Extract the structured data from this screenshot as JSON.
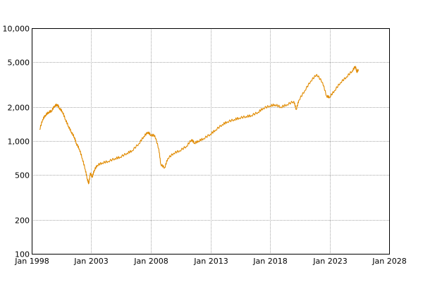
{
  "chart_data": {
    "type": "line",
    "title": "",
    "xlabel": "",
    "ylabel": "",
    "y_scale": "log",
    "xlim": [
      "1998-01-01",
      "2028-01-01"
    ],
    "ylim": [
      100,
      10000
    ],
    "grid": true,
    "legend": "none",
    "x_tick_labels": [
      "Jan 1998",
      "Jan 2003",
      "Jan 2008",
      "Jan 2013",
      "Jan 2018",
      "Jan 2023",
      "Jan 2028"
    ],
    "x_ticks": [
      "1998-01-01",
      "2003-01-01",
      "2008-01-01",
      "2013-01-01",
      "2018-01-01",
      "2023-01-01",
      "2028-01-01"
    ],
    "y_ticks": [
      100,
      200,
      500,
      1000,
      2000,
      5000,
      10000
    ],
    "y_tick_labels": [
      "100",
      "200",
      "500",
      "1,000",
      "2,000",
      "5,000",
      "10,000"
    ],
    "series": [
      {
        "color": "#e08a00",
        "points": [
          [
            "1998-09-01",
            1260
          ],
          [
            "1998-12-01",
            1550
          ],
          [
            "1999-03-01",
            1700
          ],
          [
            "1999-06-01",
            1800
          ],
          [
            "1999-09-01",
            1850
          ],
          [
            "1999-12-01",
            2050
          ],
          [
            "2000-03-01",
            2100
          ],
          [
            "2000-05-01",
            1950
          ],
          [
            "2000-08-01",
            1820
          ],
          [
            "2000-11-01",
            1550
          ],
          [
            "2001-02-01",
            1350
          ],
          [
            "2001-05-01",
            1200
          ],
          [
            "2001-08-01",
            1080
          ],
          [
            "2001-10-01",
            950
          ],
          [
            "2002-01-01",
            850
          ],
          [
            "2002-04-01",
            700
          ],
          [
            "2002-07-01",
            560
          ],
          [
            "2002-09-01",
            460
          ],
          [
            "2002-10-15",
            420
          ],
          [
            "2002-12-01",
            520
          ],
          [
            "2003-02-01",
            480
          ],
          [
            "2003-04-01",
            550
          ],
          [
            "2003-07-01",
            610
          ],
          [
            "2003-12-01",
            640
          ],
          [
            "2004-06-01",
            660
          ],
          [
            "2005-01-01",
            700
          ],
          [
            "2005-06-01",
            720
          ],
          [
            "2006-01-01",
            780
          ],
          [
            "2006-06-01",
            820
          ],
          [
            "2007-01-01",
            950
          ],
          [
            "2007-06-01",
            1100
          ],
          [
            "2007-10-01",
            1200
          ],
          [
            "2008-01-01",
            1130
          ],
          [
            "2008-05-01",
            1120
          ],
          [
            "2008-09-01",
            850
          ],
          [
            "2008-11-01",
            620
          ],
          [
            "2009-03-01",
            580
          ],
          [
            "2009-06-01",
            700
          ],
          [
            "2009-12-01",
            780
          ],
          [
            "2010-06-01",
            820
          ],
          [
            "2011-01-01",
            900
          ],
          [
            "2011-06-01",
            1030
          ],
          [
            "2011-09-01",
            960
          ],
          [
            "2012-01-01",
            1000
          ],
          [
            "2012-06-01",
            1050
          ],
          [
            "2013-01-01",
            1150
          ],
          [
            "2013-06-01",
            1250
          ],
          [
            "2014-01-01",
            1400
          ],
          [
            "2014-06-01",
            1480
          ],
          [
            "2015-01-01",
            1550
          ],
          [
            "2015-06-01",
            1600
          ],
          [
            "2016-01-01",
            1650
          ],
          [
            "2016-06-01",
            1680
          ],
          [
            "2017-01-01",
            1800
          ],
          [
            "2017-06-01",
            1950
          ],
          [
            "2018-01-01",
            2050
          ],
          [
            "2018-06-01",
            2100
          ],
          [
            "2018-12-01",
            2000
          ],
          [
            "2019-06-01",
            2100
          ],
          [
            "2020-01-01",
            2250
          ],
          [
            "2020-03-15",
            1900
          ],
          [
            "2020-06-01",
            2300
          ],
          [
            "2020-12-01",
            2800
          ],
          [
            "2021-06-01",
            3400
          ],
          [
            "2021-12-01",
            3900
          ],
          [
            "2022-06-01",
            3300
          ],
          [
            "2022-10-01",
            2500
          ],
          [
            "2023-01-01",
            2450
          ],
          [
            "2023-06-01",
            2800
          ],
          [
            "2023-12-01",
            3300
          ],
          [
            "2024-06-01",
            3700
          ],
          [
            "2024-12-01",
            4200
          ],
          [
            "2025-03-01",
            4600
          ],
          [
            "2025-04-15",
            4100
          ],
          [
            "2025-06-01",
            4300
          ]
        ]
      }
    ]
  }
}
